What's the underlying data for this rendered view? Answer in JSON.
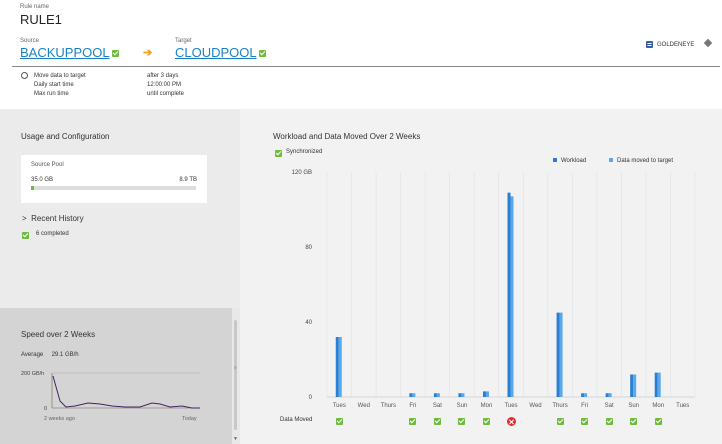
{
  "header": {
    "rule_label": "Rule name",
    "rule_name": "RULE1",
    "source_label": "Source",
    "source_name": "BACKUPPOOL",
    "target_label": "Target",
    "target_name": "CLOUDPOOL",
    "arrow": "➔",
    "server_name": "GOLDENEYE"
  },
  "schedule": {
    "rows": [
      {
        "label": "Move data to target",
        "value": "after 3 days"
      },
      {
        "label": "Daily start time",
        "value": "12:00:00 PM"
      },
      {
        "label": "Max run time",
        "value": "until complete"
      }
    ]
  },
  "usage": {
    "title": "Usage and Configuration",
    "pool_label": "Source Pool",
    "used": "35.0 GB",
    "total": "8.9 TB",
    "fill_fraction": 0.02
  },
  "history": {
    "title": "Recent History",
    "chevron": ">",
    "item": "6 completed"
  },
  "speed": {
    "title": "Speed over 2 Weeks",
    "average_label": "Average",
    "average_value": "29.1 GB/h",
    "y_labels": [
      "200 GB/h",
      "0"
    ],
    "x_labels": [
      "2 weeks ago",
      "Today"
    ]
  },
  "workload": {
    "title": "Workload and Data Moved Over 2 Weeks",
    "sync_label": "Synchronized",
    "data_moved_label": "Data Moved"
  },
  "colors": {
    "accent": "#1a82c4",
    "check": "#6fbb3d",
    "workload": "#2a7fd4",
    "moved": "#5aa8e8",
    "error": "#e03030"
  },
  "chart_data": {
    "type": "bar",
    "title": "Workload and Data Moved Over 2 Weeks",
    "xlabel": "",
    "ylabel": "",
    "ylim": [
      0,
      120
    ],
    "y_ticks": [
      "120 GB",
      "80",
      "40",
      "0"
    ],
    "categories": [
      "Tues",
      "Wed",
      "Thurs",
      "Fri",
      "Sat",
      "Sun",
      "Mon",
      "Tues",
      "Wed",
      "Thurs",
      "Fri",
      "Sat",
      "Sun",
      "Mon",
      "Tues"
    ],
    "series": [
      {
        "name": "Workload",
        "values": [
          32,
          0,
          0,
          2,
          2,
          2,
          3,
          109,
          0,
          45,
          2,
          2,
          12,
          13,
          0
        ]
      },
      {
        "name": "Data moved to target",
        "values": [
          32,
          0,
          0,
          2,
          2,
          2,
          3,
          107,
          0,
          45,
          2,
          2,
          12,
          13,
          0
        ]
      }
    ],
    "data_moved_status": [
      "ok",
      "",
      "",
      "ok",
      "ok",
      "ok",
      "ok",
      "error",
      "",
      "ok",
      "ok",
      "ok",
      "ok",
      "ok",
      ""
    ],
    "legend_position": "top-right",
    "grid": true
  }
}
